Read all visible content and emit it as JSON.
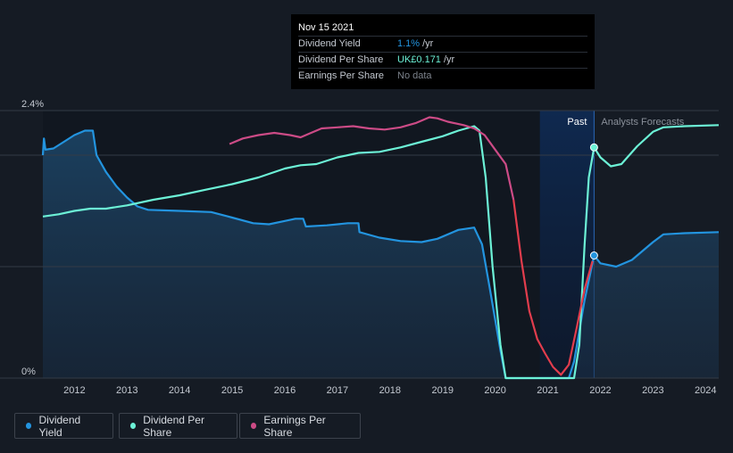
{
  "tooltip": {
    "date": "Nov 15 2021",
    "rows": [
      {
        "label": "Dividend Yield",
        "value": "1.1%",
        "unit": "/yr"
      },
      {
        "label": "Dividend Per Share",
        "value": "UK£0.171",
        "unit": "/yr"
      },
      {
        "label": "Earnings Per Share",
        "value": "No data",
        "unit": ""
      }
    ]
  },
  "legend": {
    "items": [
      {
        "label": "Dividend Yield",
        "color": "#2394df"
      },
      {
        "label": "Dividend Per Share",
        "color": "#6cf1d6"
      },
      {
        "label": "Earnings Per Share",
        "color": "#cc4b86"
      }
    ]
  },
  "chart_data": {
    "type": "line",
    "x_ticks": [
      "2012",
      "2013",
      "2014",
      "2015",
      "2016",
      "2017",
      "2018",
      "2019",
      "2020",
      "2021",
      "2022",
      "2023",
      "2024"
    ],
    "y_ticks": [
      "2.4%",
      "0%"
    ],
    "ylim": [
      0,
      2.4
    ],
    "xlim": [
      2011.4,
      2024.25
    ],
    "past_label": "Past",
    "forecast_label": "Analysts Forecasts",
    "forecast_start": 2021.88,
    "highlight_start": 2020.85,
    "grid": true,
    "series": [
      {
        "name": "Dividend Yield",
        "color": "#2394df",
        "points": [
          [
            2011.4,
            2.0
          ],
          [
            2011.42,
            2.15
          ],
          [
            2011.45,
            2.05
          ],
          [
            2011.6,
            2.06
          ],
          [
            2011.8,
            2.12
          ],
          [
            2012.0,
            2.18
          ],
          [
            2012.2,
            2.22
          ],
          [
            2012.35,
            2.22
          ],
          [
            2012.42,
            2.0
          ],
          [
            2012.6,
            1.85
          ],
          [
            2012.8,
            1.72
          ],
          [
            2013.0,
            1.62
          ],
          [
            2013.2,
            1.54
          ],
          [
            2013.4,
            1.51
          ],
          [
            2014.0,
            1.5
          ],
          [
            2014.6,
            1.49
          ],
          [
            2015.0,
            1.44
          ],
          [
            2015.4,
            1.39
          ],
          [
            2015.7,
            1.38
          ],
          [
            2016.0,
            1.41
          ],
          [
            2016.2,
            1.43
          ],
          [
            2016.35,
            1.43
          ],
          [
            2016.4,
            1.36
          ],
          [
            2016.8,
            1.37
          ],
          [
            2017.2,
            1.39
          ],
          [
            2017.4,
            1.39
          ],
          [
            2017.42,
            1.31
          ],
          [
            2017.8,
            1.26
          ],
          [
            2018.2,
            1.23
          ],
          [
            2018.6,
            1.22
          ],
          [
            2018.9,
            1.25
          ],
          [
            2019.3,
            1.33
          ],
          [
            2019.6,
            1.35
          ],
          [
            2019.75,
            1.2
          ],
          [
            2019.9,
            0.8
          ],
          [
            2020.1,
            0.25
          ],
          [
            2020.2,
            0.0
          ],
          [
            2021.4,
            0.0
          ],
          [
            2021.5,
            0.15
          ],
          [
            2021.7,
            0.7
          ],
          [
            2021.88,
            1.1
          ],
          [
            2022.0,
            1.03
          ],
          [
            2022.3,
            1.0
          ],
          [
            2022.6,
            1.06
          ],
          [
            2023.0,
            1.22
          ],
          [
            2023.2,
            1.29
          ],
          [
            2023.6,
            1.3
          ],
          [
            2024.25,
            1.31
          ]
        ]
      },
      {
        "name": "Dividend Per Share",
        "color": "#6cf1d6",
        "points": [
          [
            2011.4,
            1.45
          ],
          [
            2011.7,
            1.47
          ],
          [
            2012.0,
            1.5
          ],
          [
            2012.3,
            1.52
          ],
          [
            2012.6,
            1.52
          ],
          [
            2013.0,
            1.55
          ],
          [
            2013.5,
            1.6
          ],
          [
            2014.0,
            1.64
          ],
          [
            2014.5,
            1.69
          ],
          [
            2015.0,
            1.74
          ],
          [
            2015.5,
            1.8
          ],
          [
            2016.0,
            1.88
          ],
          [
            2016.3,
            1.91
          ],
          [
            2016.6,
            1.92
          ],
          [
            2017.0,
            1.98
          ],
          [
            2017.4,
            2.02
          ],
          [
            2017.8,
            2.03
          ],
          [
            2018.2,
            2.07
          ],
          [
            2018.6,
            2.12
          ],
          [
            2019.0,
            2.17
          ],
          [
            2019.3,
            2.22
          ],
          [
            2019.6,
            2.26
          ],
          [
            2019.7,
            2.22
          ],
          [
            2019.82,
            1.8
          ],
          [
            2019.95,
            1.0
          ],
          [
            2020.1,
            0.3
          ],
          [
            2020.2,
            0.0
          ],
          [
            2021.5,
            0.0
          ],
          [
            2021.6,
            0.3
          ],
          [
            2021.7,
            1.2
          ],
          [
            2021.78,
            1.8
          ],
          [
            2021.88,
            2.07
          ],
          [
            2022.0,
            1.98
          ],
          [
            2022.2,
            1.9
          ],
          [
            2022.4,
            1.92
          ],
          [
            2022.7,
            2.08
          ],
          [
            2023.0,
            2.21
          ],
          [
            2023.2,
            2.25
          ],
          [
            2023.6,
            2.26
          ],
          [
            2024.25,
            2.27
          ]
        ]
      },
      {
        "name": "Earnings Per Share",
        "color": "#cc4b86",
        "points": [
          [
            2014.95,
            2.1
          ],
          [
            2015.2,
            2.15
          ],
          [
            2015.5,
            2.18
          ],
          [
            2015.8,
            2.2
          ],
          [
            2016.1,
            2.18
          ],
          [
            2016.3,
            2.16
          ],
          [
            2016.5,
            2.2
          ],
          [
            2016.7,
            2.24
          ],
          [
            2017.0,
            2.25
          ],
          [
            2017.3,
            2.26
          ],
          [
            2017.6,
            2.24
          ],
          [
            2017.9,
            2.23
          ],
          [
            2018.2,
            2.25
          ],
          [
            2018.5,
            2.29
          ],
          [
            2018.75,
            2.34
          ],
          [
            2018.9,
            2.33
          ],
          [
            2019.1,
            2.3
          ],
          [
            2019.4,
            2.27
          ],
          [
            2019.6,
            2.24
          ],
          [
            2019.8,
            2.18
          ],
          [
            2020.0,
            2.05
          ],
          [
            2020.2,
            1.92
          ],
          [
            2020.35,
            1.6
          ],
          [
            2020.5,
            1.05
          ],
          [
            2020.65,
            0.6
          ],
          [
            2020.8,
            0.35
          ],
          [
            2020.95,
            0.22
          ],
          [
            2021.1,
            0.1
          ],
          [
            2021.25,
            0.03
          ],
          [
            2021.4,
            0.12
          ],
          [
            2021.55,
            0.45
          ],
          [
            2021.7,
            0.8
          ],
          [
            2021.85,
            1.05
          ]
        ]
      }
    ],
    "markers": [
      {
        "series": "Dividend Per Share",
        "x": 2021.88,
        "y": 2.07
      },
      {
        "series": "Dividend Yield",
        "x": 2021.88,
        "y": 1.1
      }
    ]
  }
}
